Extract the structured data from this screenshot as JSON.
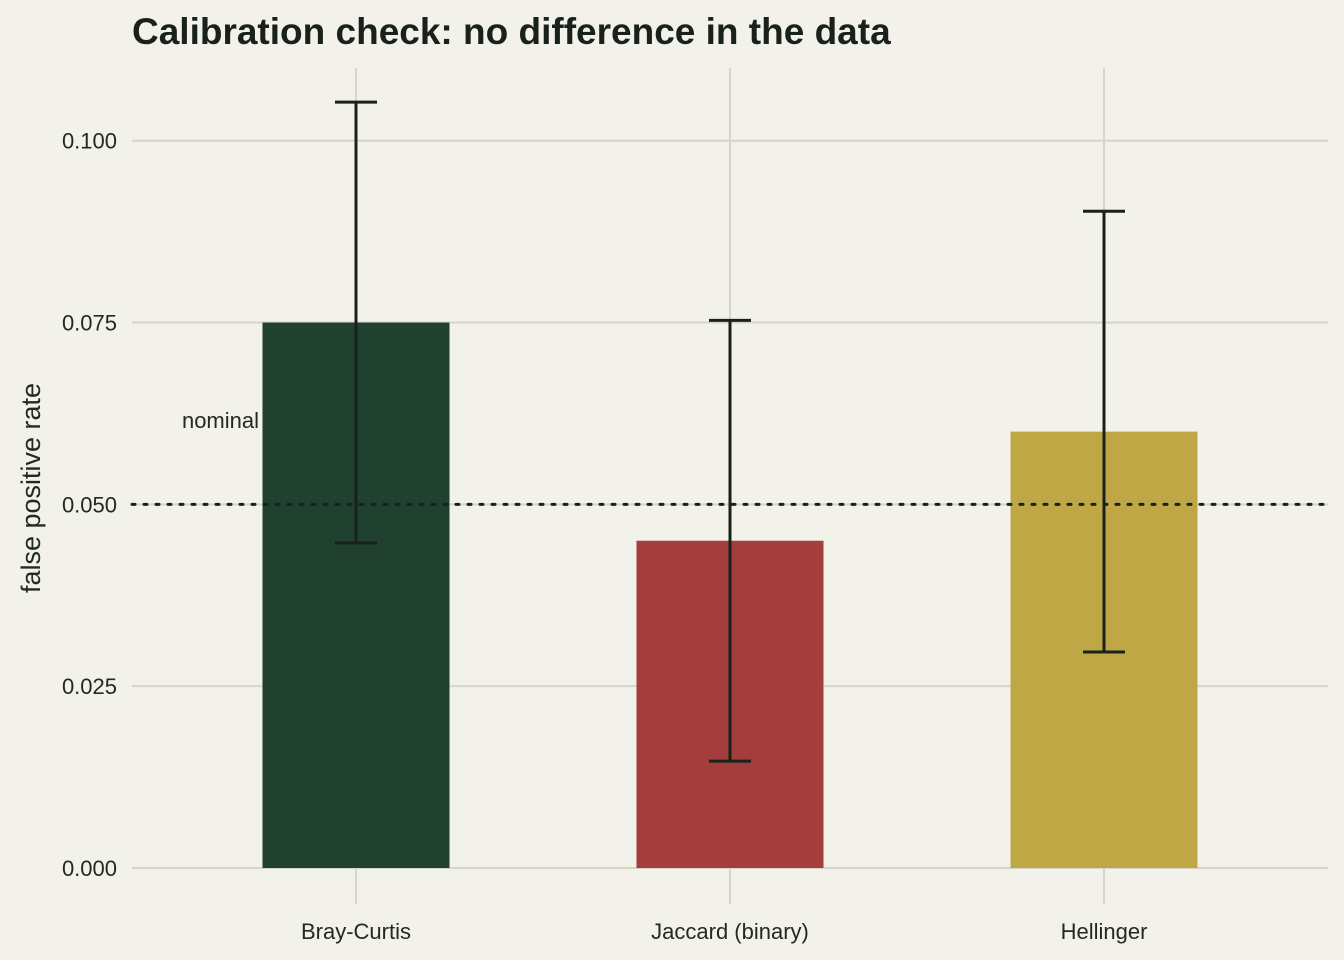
{
  "chart_data": {
    "type": "bar",
    "title": "Calibration check: no difference in the data",
    "xlabel": "",
    "ylabel": "false positive rate",
    "categories": [
      "Bray-Curtis",
      "Jaccard (binary)",
      "Hellinger"
    ],
    "values": [
      0.075,
      0.045,
      0.06
    ],
    "error_low": [
      0.0447,
      0.0147,
      0.0297
    ],
    "error_high": [
      0.1053,
      0.0753,
      0.0903
    ],
    "bar_colors": [
      "#20412f",
      "#a33e3d",
      "#bfa746"
    ],
    "ylim": [
      0,
      0.11
    ],
    "yticks": [
      "0.000",
      "0.025",
      "0.050",
      "0.075",
      "0.100"
    ],
    "ytick_values": [
      0,
      0.025,
      0.05,
      0.075,
      0.1
    ],
    "reference_line": {
      "y": 0.05,
      "label": "nominal",
      "style": "dotted"
    },
    "grid": true,
    "legend": "none"
  },
  "colors": {
    "background": "#f2f1ea",
    "grid": "#d5d5c8",
    "text": "#1b231d"
  }
}
